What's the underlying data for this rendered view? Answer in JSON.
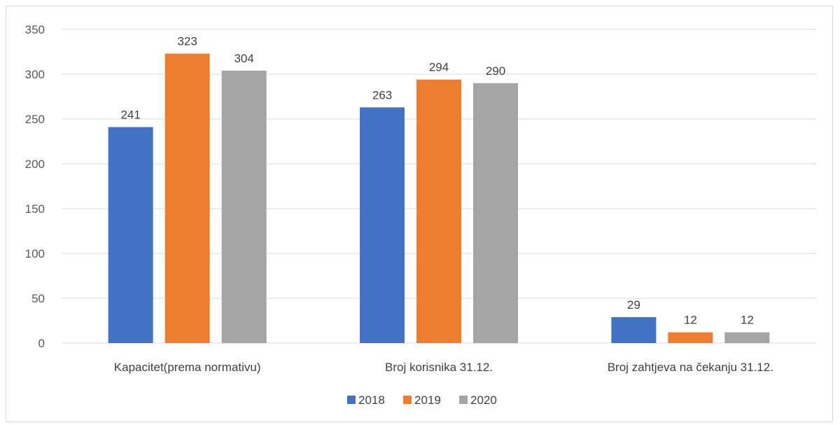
{
  "chart_data": {
    "type": "bar",
    "title": "",
    "xlabel": "",
    "ylabel": "",
    "categories": [
      "Kapacitet(prema normativu)",
      "Broj korisnika 31.12.",
      "Broj zahtjeva na čekanju 31.12."
    ],
    "series": [
      {
        "name": "2018",
        "color": "#4472C4",
        "values": [
          241,
          263,
          29
        ]
      },
      {
        "name": "2019",
        "color": "#ED7D31",
        "values": [
          323,
          294,
          12
        ]
      },
      {
        "name": "2020",
        "color": "#A5A5A5",
        "values": [
          304,
          290,
          12
        ]
      }
    ],
    "ylim": [
      0,
      350
    ],
    "yticks": [
      0,
      50,
      100,
      150,
      200,
      250,
      300,
      350
    ],
    "grid": true,
    "legend_position": "bottom"
  }
}
